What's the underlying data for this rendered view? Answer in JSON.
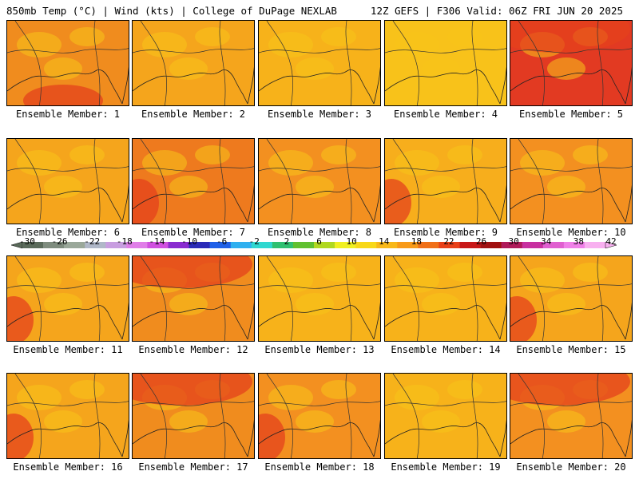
{
  "header": {
    "left": "850mb Temp (°C) | Wind (kts) | College of DuPage NEXLAB",
    "right": "12Z GEFS | F306 Valid: 06Z FRI JUN 20 2025"
  },
  "members": [
    {
      "label": "Ensemble Member: 1",
      "base": "#f08c1e",
      "hot": "low"
    },
    {
      "label": "Ensemble Member: 2",
      "base": "#f5a51c",
      "hot": "none"
    },
    {
      "label": "Ensemble Member: 3",
      "base": "#f7b21a",
      "hot": "none"
    },
    {
      "label": "Ensemble Member: 4",
      "base": "#f8c21a",
      "hot": "none"
    },
    {
      "label": "Ensemble Member: 5",
      "base": "#e23a22",
      "hot": "top"
    },
    {
      "label": "Ensemble Member: 6",
      "base": "#f5a51c",
      "hot": "none"
    },
    {
      "label": "Ensemble Member: 7",
      "base": "#ee7a1e",
      "hot": "left"
    },
    {
      "label": "Ensemble Member: 8",
      "base": "#f39020",
      "hot": "none"
    },
    {
      "label": "Ensemble Member: 9",
      "base": "#f7ae1c",
      "hot": "left"
    },
    {
      "label": "Ensemble Member: 10",
      "base": "#f39020",
      "hot": "none"
    },
    {
      "label": "Ensemble Member: 11",
      "base": "#f5a51c",
      "hot": "left"
    },
    {
      "label": "Ensemble Member: 12",
      "base": "#f08c1e",
      "hot": "top"
    },
    {
      "label": "Ensemble Member: 13",
      "base": "#f7b21a",
      "hot": "none"
    },
    {
      "label": "Ensemble Member: 14",
      "base": "#f7b21a",
      "hot": "none"
    },
    {
      "label": "Ensemble Member: 15",
      "base": "#f5a51c",
      "hot": "left"
    },
    {
      "label": "Ensemble Member: 16",
      "base": "#f5a51c",
      "hot": "left"
    },
    {
      "label": "Ensemble Member: 17",
      "base": "#f08c1e",
      "hot": "top"
    },
    {
      "label": "Ensemble Member: 18",
      "base": "#f39020",
      "hot": "left"
    },
    {
      "label": "Ensemble Member: 19",
      "base": "#f7b21a",
      "hot": "none"
    },
    {
      "label": "Ensemble Member: 20",
      "base": "#f39020",
      "hot": "top"
    }
  ],
  "colorbar": {
    "labels": [
      "-30",
      "-26",
      "-22",
      "-18",
      "-14",
      "-10",
      "-6",
      "-2",
      "2",
      "6",
      "10",
      "14",
      "18",
      "22",
      "26",
      "30",
      "34",
      "38",
      "42"
    ],
    "colors": [
      "#5a6a5a",
      "#7e8c7e",
      "#9aa89a",
      "#b0b8c8",
      "#c89ee0",
      "#e07ee8",
      "#d050e0",
      "#8a2cd0",
      "#2a2ab8",
      "#2060e8",
      "#30b0f0",
      "#30d8d0",
      "#30c070",
      "#60c030",
      "#b0d820",
      "#f0f020",
      "#f8d818",
      "#f8b818",
      "#f89a18",
      "#f07018",
      "#e84018",
      "#c81818",
      "#a01010",
      "#b01a5a",
      "#c830a0",
      "#e060d0",
      "#f080e8",
      "#f8b0f0"
    ]
  }
}
